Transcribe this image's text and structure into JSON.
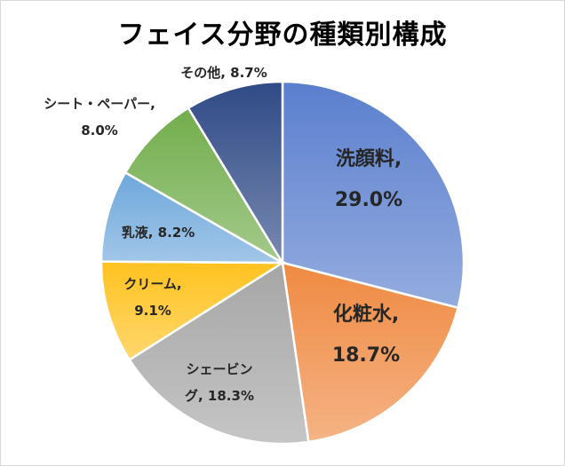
{
  "chart_data": {
    "type": "pie",
    "title": "フェイス分野の種類別構成",
    "slices": [
      {
        "label": "洗顔料",
        "value": 29.0,
        "value_text": "29.0%",
        "color": "#5b7fce"
      },
      {
        "label": "化粧水",
        "value": 18.7,
        "value_text": "18.7%",
        "color": "#ef8a42"
      },
      {
        "label": "シェービング",
        "value": 18.3,
        "value_text": "18.3%",
        "color": "#a6a6a6"
      },
      {
        "label": "クリーム",
        "value": 9.1,
        "value_text": "9.1%",
        "color": "#ffc21f"
      },
      {
        "label": "乳液",
        "value": 8.2,
        "value_text": "8.2%",
        "color": "#6ea8dc"
      },
      {
        "label": "シート・ペーパー",
        "value": 8.0,
        "value_text": "8.0%",
        "color": "#72ad4c"
      },
      {
        "label": "その他",
        "value": 8.7,
        "value_text": "8.7%",
        "color": "#2f4a86"
      }
    ],
    "data_labels": [
      {
        "lines": [
          "洗顔料,",
          "29.0%"
        ]
      },
      {
        "lines": [
          "化粧水,",
          "18.7%"
        ]
      },
      {
        "lines": [
          "シェービン",
          "グ, 18.3%"
        ]
      },
      {
        "lines": [
          "クリーム,",
          "9.1%"
        ]
      },
      {
        "lines": [
          "乳液, 8.2%"
        ]
      },
      {
        "lines": [
          "シート・ペーパー,",
          "8.0%"
        ]
      },
      {
        "lines": [
          "その他, 8.7%"
        ]
      }
    ],
    "start_angle": "12 o'clock",
    "direction": "clockwise",
    "legend": "none"
  }
}
